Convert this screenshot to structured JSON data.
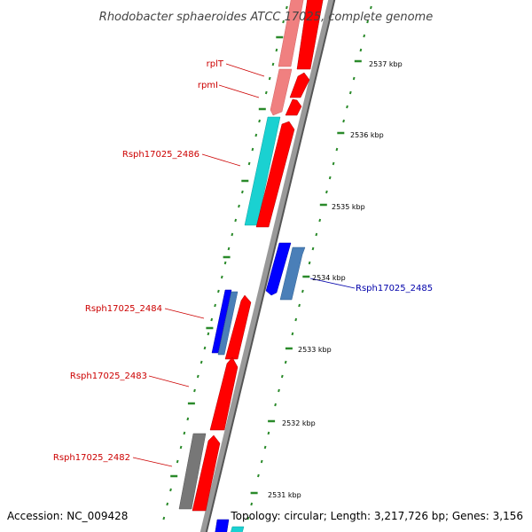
{
  "title": "Rhodobacter sphaeroides ATCC 17025, complete genome",
  "footer": {
    "accession": "Accession: NC_009428",
    "topology": "Topology: circular; Length: 3,217,726 bp; Genes: 3,156"
  },
  "colors": {
    "backbone": "#999999",
    "tick": "#2a8a2a",
    "label_red": "#cc0000",
    "label_blue": "#0000aa",
    "red": "#ff0000",
    "pink": "#f08080",
    "cyan": "#1ad1d1",
    "blue": "#0000ff",
    "steel": "#4a7fb8",
    "grey": "#777777"
  },
  "ticks": [
    {
      "label": "2537 kbp"
    },
    {
      "label": "2536 kbp"
    },
    {
      "label": "2535 kbp"
    },
    {
      "label": "2534 kbp"
    },
    {
      "label": "2533 kbp"
    },
    {
      "label": "2532 kbp"
    },
    {
      "label": "2531 kbp"
    }
  ],
  "gene_labels": [
    {
      "text": "rplT",
      "color": "red"
    },
    {
      "text": "rpmI",
      "color": "red"
    },
    {
      "text": "Rsph17025_2486",
      "color": "red"
    },
    {
      "text": "Rsph17025_2485",
      "color": "blue"
    },
    {
      "text": "Rsph17025_2484",
      "color": "red"
    },
    {
      "text": "Rsph17025_2483",
      "color": "red"
    },
    {
      "text": "Rsph17025_2482",
      "color": "red"
    }
  ]
}
